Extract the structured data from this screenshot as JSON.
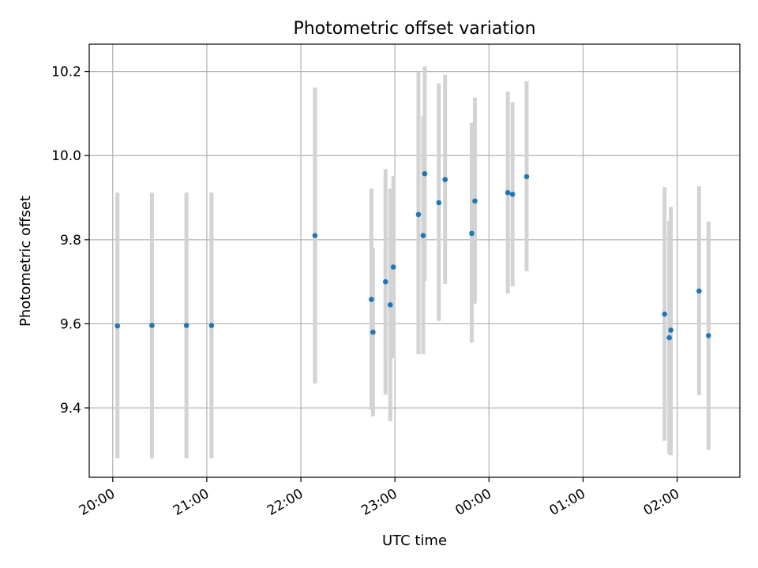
{
  "chart_data": {
    "type": "scatter",
    "title": "Photometric offset variation",
    "xlabel": "UTC time",
    "ylabel": "Photometric offset",
    "x_axis_kind": "time",
    "x_start_time": "19:45",
    "x_end_time": "02:40",
    "x_ticks": [
      "20:00",
      "21:00",
      "22:00",
      "23:00",
      "00:00",
      "01:00",
      "02:00"
    ],
    "ylim": [
      9.235,
      10.265
    ],
    "y_ticks": [
      9.4,
      9.6,
      9.8,
      10.0,
      10.2
    ],
    "grid": true,
    "colors": {
      "point": "#1f77b4",
      "errorbar": "#d3d3d3",
      "grid": "#b0b0b0"
    },
    "points": [
      {
        "time": "20:03",
        "y": 9.595,
        "err_low": 9.28,
        "err_high": 9.912
      },
      {
        "time": "20:25",
        "y": 9.596,
        "err_low": 9.28,
        "err_high": 9.912
      },
      {
        "time": "20:47",
        "y": 9.596,
        "err_low": 9.28,
        "err_high": 9.912
      },
      {
        "time": "21:03",
        "y": 9.596,
        "err_low": 9.28,
        "err_high": 9.912
      },
      {
        "time": "22:09",
        "y": 9.81,
        "err_low": 9.458,
        "err_high": 10.162
      },
      {
        "time": "22:45",
        "y": 9.658,
        "err_low": 9.395,
        "err_high": 9.922
      },
      {
        "time": "22:46",
        "y": 9.58,
        "err_low": 9.38,
        "err_high": 9.78
      },
      {
        "time": "22:54",
        "y": 9.7,
        "err_low": 9.432,
        "err_high": 9.968
      },
      {
        "time": "22:57",
        "y": 9.645,
        "err_low": 9.368,
        "err_high": 9.922
      },
      {
        "time": "22:59",
        "y": 9.735,
        "err_low": 9.518,
        "err_high": 9.952
      },
      {
        "time": "23:15",
        "y": 9.86,
        "err_low": 9.528,
        "err_high": 10.2
      },
      {
        "time": "23:18",
        "y": 9.81,
        "err_low": 9.528,
        "err_high": 10.093
      },
      {
        "time": "23:19",
        "y": 9.957,
        "err_low": 9.702,
        "err_high": 10.212
      },
      {
        "time": "23:28",
        "y": 9.888,
        "err_low": 9.607,
        "err_high": 10.172
      },
      {
        "time": "23:32",
        "y": 9.943,
        "err_low": 9.695,
        "err_high": 10.192
      },
      {
        "time": "23:49",
        "y": 9.815,
        "err_low": 9.555,
        "err_high": 10.078
      },
      {
        "time": "23:51",
        "y": 9.892,
        "err_low": 9.648,
        "err_high": 10.138
      },
      {
        "time": "00:12",
        "y": 9.912,
        "err_low": 9.672,
        "err_high": 10.152
      },
      {
        "time": "00:15",
        "y": 9.908,
        "err_low": 9.689,
        "err_high": 10.127
      },
      {
        "time": "00:24",
        "y": 9.95,
        "err_low": 9.725,
        "err_high": 10.177
      },
      {
        "time": "01:52",
        "y": 9.623,
        "err_low": 9.322,
        "err_high": 9.925
      },
      {
        "time": "01:55",
        "y": 9.567,
        "err_low": 9.29,
        "err_high": 9.845
      },
      {
        "time": "01:56",
        "y": 9.585,
        "err_low": 9.287,
        "err_high": 9.878
      },
      {
        "time": "02:14",
        "y": 9.678,
        "err_low": 9.43,
        "err_high": 9.927
      },
      {
        "time": "02:20",
        "y": 9.572,
        "err_low": 9.3,
        "err_high": 9.843
      }
    ]
  }
}
